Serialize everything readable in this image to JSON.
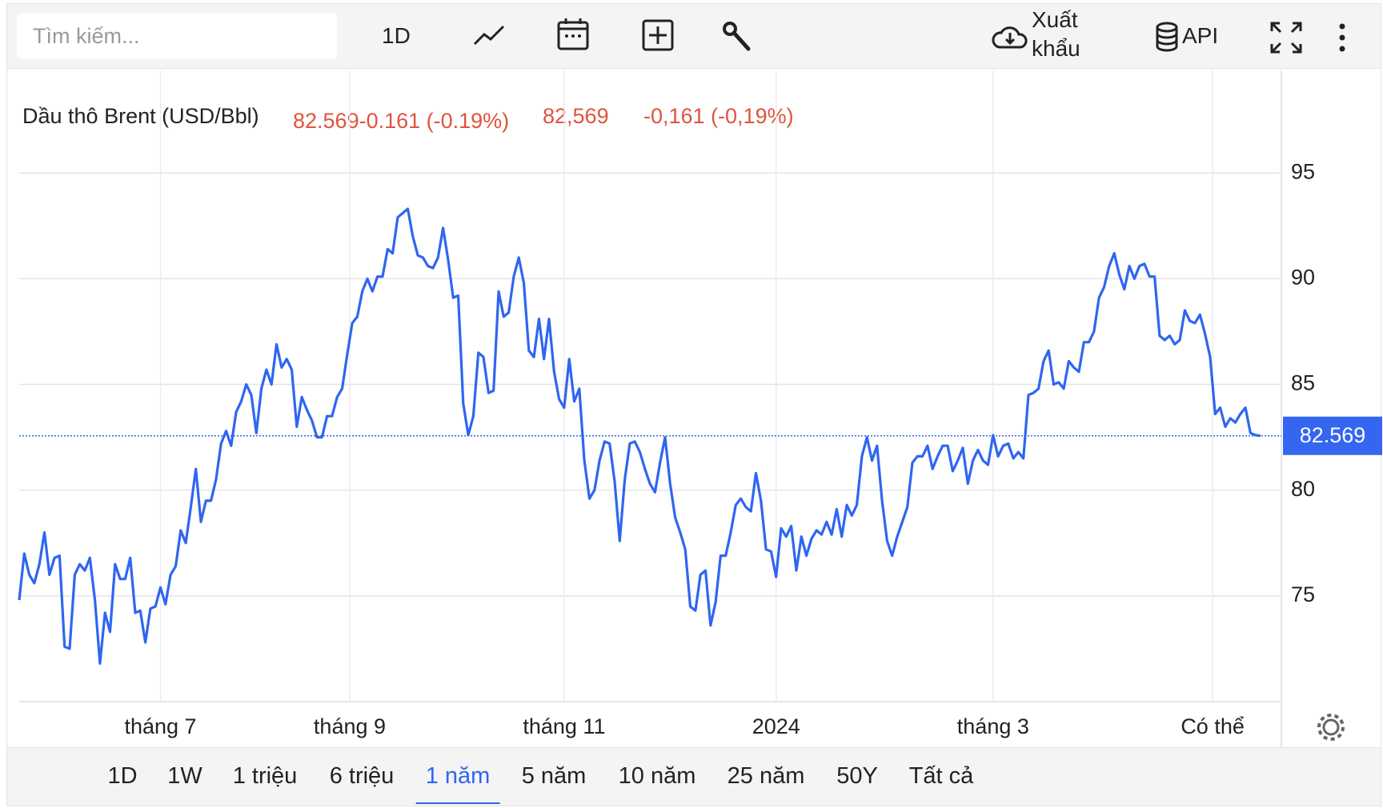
{
  "toolbar": {
    "search_placeholder": "Tìm kiếm...",
    "interval": "1D",
    "export": "Xuất khẩu",
    "api": "API"
  },
  "range_buttons": [
    "1D",
    "1W",
    "1 triệu",
    "6 triệu",
    "1 năm",
    "5 năm",
    "10 năm",
    "25 năm",
    "50Y",
    "Tất cả"
  ],
  "header": {
    "change_compact": "82.569-0.161 (-0.19%)",
    "last_local": "82,569",
    "change_local": "-0,161 (-0,19%)"
  },
  "chart_data": {
    "type": "line",
    "series": [
      {
        "name": "Dầu thô Brent (USD/Bbl)",
        "color": "#2f66f0",
        "values": [
          74.8,
          77,
          76,
          75.6,
          76.5,
          78,
          76,
          76.8,
          76.9,
          72.6,
          72.5,
          76,
          76.5,
          76.2,
          76.8,
          74.8,
          71.8,
          74.2,
          73.3,
          76.5,
          75.8,
          75.8,
          76.8,
          74.2,
          74.3,
          72.8,
          74.4,
          74.5,
          75.4,
          74.6,
          76,
          76.4,
          78.1,
          77.5,
          79.2,
          81,
          78.5,
          79.5,
          79.5,
          80.5,
          82.2,
          82.8,
          82.1,
          83.7,
          84.2,
          85,
          84.5,
          82.7,
          84.8,
          85.7,
          85,
          86.9,
          85.8,
          86.2,
          85.7,
          83,
          84.4,
          83.8,
          83.3,
          82.5,
          82.5,
          83.5,
          83.5,
          84.4,
          84.8,
          86.4,
          87.9,
          88.2,
          89.4,
          90,
          89.4,
          90.1,
          90.1,
          91.4,
          91.2,
          92.9,
          93.1,
          93.3,
          92,
          91.1,
          91,
          90.6,
          90.5,
          91,
          92.4,
          90.9,
          89.1,
          89.2,
          84.1,
          82.6,
          83.5,
          86.5,
          86.3,
          84.6,
          84.7,
          89.4,
          88.2,
          88.4,
          90.1,
          91,
          89.8,
          86.6,
          86.3,
          88.1,
          86.2,
          88.1,
          85.6,
          84.3,
          83.9,
          86.2,
          84.2,
          84.8,
          81.4,
          79.6,
          80,
          81.4,
          82.3,
          82.2,
          80.4,
          77.6,
          80.5,
          82.2,
          82.3,
          81.8,
          81,
          80.3,
          79.9,
          81.3,
          82.5,
          80.3,
          78.7,
          78,
          77.2,
          74.5,
          74.3,
          76,
          76.2,
          73.6,
          74.7,
          76.9,
          76.9,
          78,
          79.3,
          79.6,
          79.2,
          79,
          80.8,
          79.5,
          77.2,
          77.1,
          75.9,
          78.2,
          77.8,
          78.3,
          76.2,
          77.8,
          76.9,
          77.7,
          78.1,
          77.9,
          78.5,
          77.9,
          79.1,
          77.8,
          79.3,
          78.8,
          79.3,
          81.6,
          82.5,
          81.4,
          82.1,
          79.5,
          77.6,
          76.9,
          77.8,
          78.5,
          79.2,
          81.3,
          81.6,
          81.6,
          82.1,
          81,
          81.6,
          82.1,
          82.1,
          80.9,
          81.4,
          82,
          80.3,
          81.4,
          81.9,
          81.4,
          81.2,
          82.6,
          81.6,
          82.1,
          82.2,
          81.5,
          81.8,
          81.5,
          84.5,
          84.6,
          84.8,
          86.1,
          86.6,
          85,
          85.1,
          84.8,
          86.1,
          85.8,
          85.6,
          87,
          87,
          87.5,
          89.1,
          89.6,
          90.6,
          91.2,
          90.2,
          89.5,
          90.6,
          90,
          90.6,
          90.7,
          90.1,
          90.1,
          87.3,
          87.1,
          87.3,
          86.9,
          87.1,
          88.5,
          88,
          87.9,
          88.3,
          87.4,
          86.3,
          83.6,
          83.9,
          83,
          83.4,
          83.2,
          83.6,
          83.9,
          82.7,
          82.6,
          82.569
        ]
      }
    ],
    "last_value": 82.569,
    "last_value_color": "#3466f2",
    "xlim": [
      0,
      246
    ],
    "xticks": [
      {
        "value": 28,
        "label": "tháng 7"
      },
      {
        "value": 65.5,
        "label": "tháng 9"
      },
      {
        "value": 108,
        "label": "tháng 11"
      },
      {
        "value": 150,
        "label": "2024"
      },
      {
        "value": 193,
        "label": "tháng 3"
      },
      {
        "value": 236.5,
        "label": "Có thể"
      }
    ],
    "ylim": [
      70,
      99.85
    ],
    "yticks": [
      75,
      80,
      85,
      90,
      95
    ],
    "grid": true
  }
}
